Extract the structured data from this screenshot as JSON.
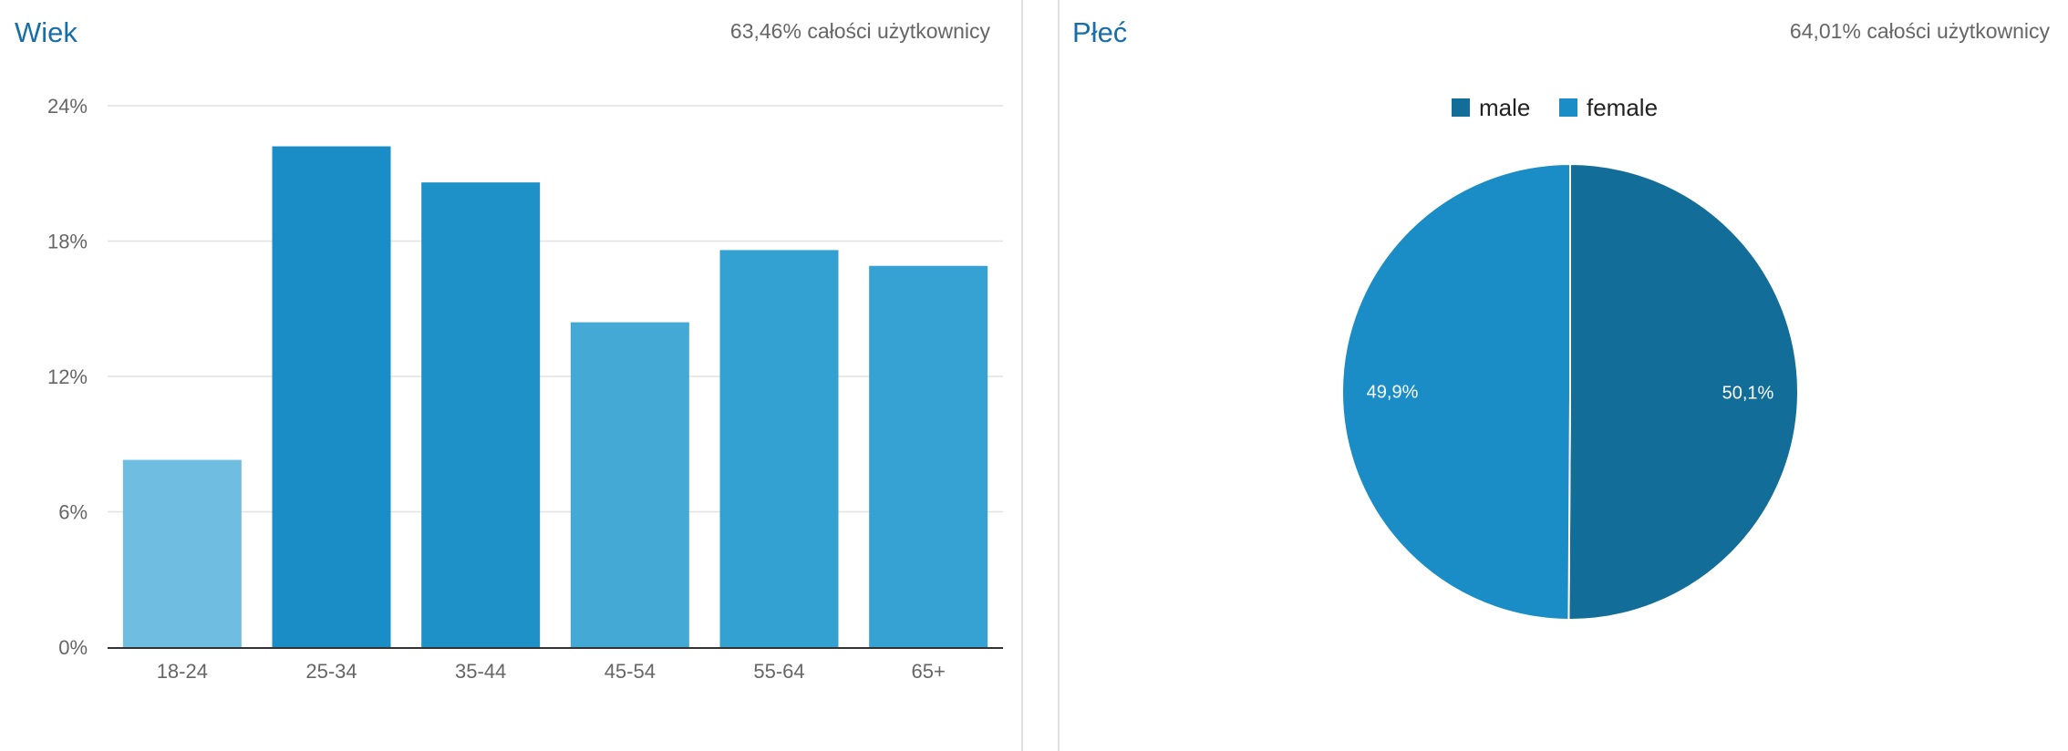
{
  "age_card": {
    "title": "Wiek",
    "subtitle": "63,46% całości użytkownicy"
  },
  "gender_card": {
    "title": "Płeć",
    "subtitle": "64,01% całości użytkownicy"
  },
  "chart_data": [
    {
      "type": "bar",
      "title": "Wiek",
      "categories": [
        "18-24",
        "25-34",
        "35-44",
        "45-54",
        "55-64",
        "65+"
      ],
      "values": [
        8.3,
        22.2,
        20.6,
        14.4,
        17.6,
        16.9
      ],
      "ylim": [
        0,
        24
      ],
      "yticks": [
        "0%",
        "6%",
        "12%",
        "18%",
        "24%"
      ],
      "ytick_values": [
        0,
        6,
        12,
        18,
        24
      ],
      "grid": true,
      "colors": [
        "#6fbde0",
        "#1a8dc6",
        "#1f91c9",
        "#45a9d6",
        "#34a1d3",
        "#36a2d3"
      ]
    },
    {
      "type": "pie",
      "title": "Płeć",
      "legend_position": "top",
      "series": [
        {
          "name": "male",
          "value": 50.1,
          "label": "50,1%",
          "color": "#126e99"
        },
        {
          "name": "female",
          "value": 49.9,
          "label": "49,9%",
          "color": "#1a8dc6"
        }
      ]
    }
  ]
}
